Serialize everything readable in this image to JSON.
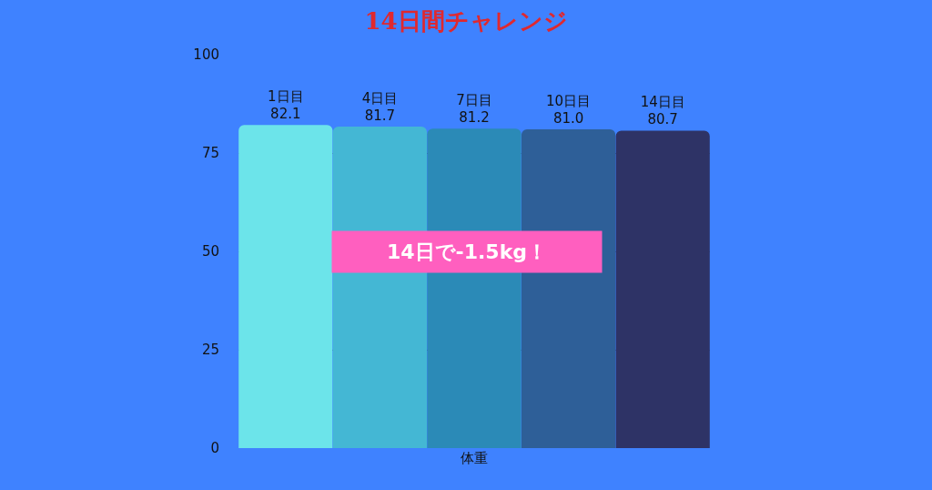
{
  "chart_data": {
    "type": "bar",
    "title": "14日間チャレンジ",
    "categories": [
      "体重"
    ],
    "series": [
      {
        "name": "1日目",
        "color": "#6ce4ea",
        "values": [
          82.1
        ],
        "value_labels": [
          "82.1"
        ]
      },
      {
        "name": "4日目",
        "color": "#44b7d4",
        "values": [
          81.7
        ],
        "value_labels": [
          "81.7"
        ]
      },
      {
        "name": "7日目",
        "color": "#2b8ab7",
        "values": [
          81.2
        ],
        "value_labels": [
          "81.2"
        ]
      },
      {
        "name": "10日目",
        "color": "#2e5f98",
        "values": [
          81.0
        ],
        "value_labels": [
          "81.0"
        ]
      },
      {
        "name": "14日目",
        "color": "#2e3366",
        "values": [
          80.7
        ],
        "value_labels": [
          "80.7"
        ]
      }
    ],
    "ylim": [
      0,
      100
    ],
    "yticks": [
      0,
      25,
      50,
      75,
      100
    ],
    "grid": "y",
    "legend": false,
    "annotations": [
      "14日で-1.5kg！"
    ]
  }
}
